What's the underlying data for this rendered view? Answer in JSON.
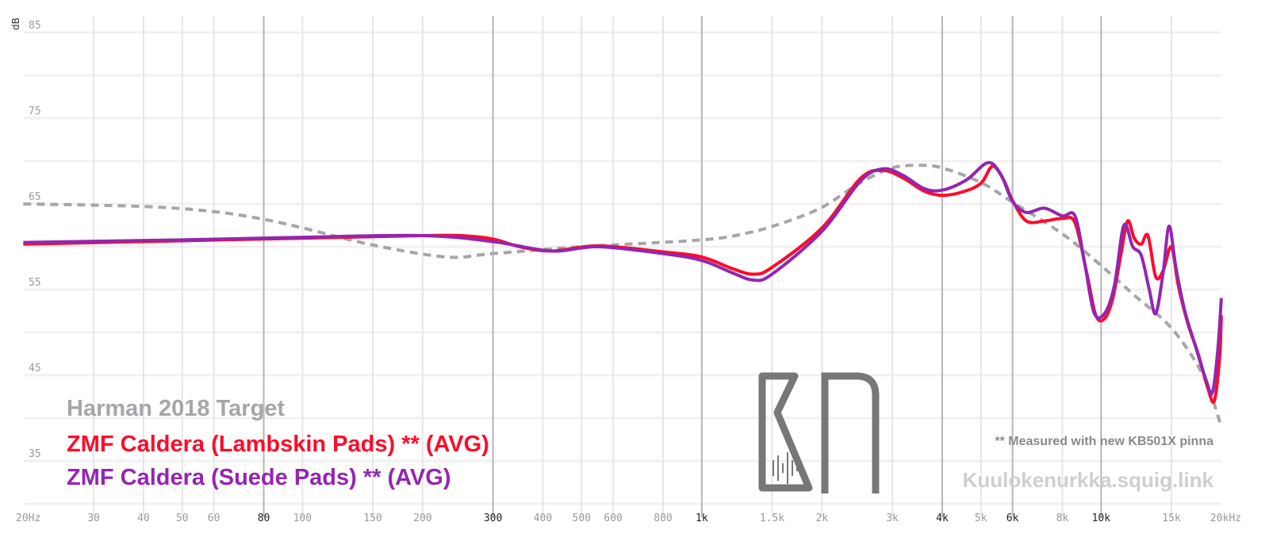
{
  "chart_data": {
    "type": "line",
    "xscale": "log",
    "xlim": [
      20,
      20000
    ],
    "ylim": [
      30,
      85
    ],
    "ylabel": "dB",
    "yticks": [
      85,
      75,
      65,
      55,
      45,
      35
    ],
    "xticks": [
      {
        "f": 20,
        "label": "20Hz",
        "dark": false
      },
      {
        "f": 30,
        "label": "30",
        "dark": false
      },
      {
        "f": 40,
        "label": "40",
        "dark": false
      },
      {
        "f": 50,
        "label": "50",
        "dark": false
      },
      {
        "f": 60,
        "label": "60",
        "dark": false
      },
      {
        "f": 80,
        "label": "80",
        "dark": true
      },
      {
        "f": 100,
        "label": "100",
        "dark": false
      },
      {
        "f": 150,
        "label": "150",
        "dark": false
      },
      {
        "f": 200,
        "label": "200",
        "dark": false
      },
      {
        "f": 300,
        "label": "300",
        "dark": true
      },
      {
        "f": 400,
        "label": "400",
        "dark": false
      },
      {
        "f": 500,
        "label": "500",
        "dark": false
      },
      {
        "f": 600,
        "label": "600",
        "dark": false
      },
      {
        "f": 800,
        "label": "800",
        "dark": false
      },
      {
        "f": 1000,
        "label": "1k",
        "dark": true
      },
      {
        "f": 1500,
        "label": "1.5k",
        "dark": false
      },
      {
        "f": 2000,
        "label": "2k",
        "dark": false
      },
      {
        "f": 3000,
        "label": "3k",
        "dark": false
      },
      {
        "f": 4000,
        "label": "4k",
        "dark": true
      },
      {
        "f": 5000,
        "label": "5k",
        "dark": false
      },
      {
        "f": 6000,
        "label": "6k",
        "dark": true
      },
      {
        "f": 8000,
        "label": "8k",
        "dark": false
      },
      {
        "f": 10000,
        "label": "10k",
        "dark": true
      },
      {
        "f": 15000,
        "label": "15k",
        "dark": false
      },
      {
        "f": 20000,
        "label": "20kHz",
        "dark": false
      }
    ],
    "series": [
      {
        "name": "Harman 2018 Target",
        "color": "#a8a5aa",
        "dashed": true,
        "points": [
          [
            20,
            65
          ],
          [
            40,
            64.7
          ],
          [
            60,
            64.1
          ],
          [
            80,
            63.2
          ],
          [
            100,
            62.2
          ],
          [
            150,
            60.2
          ],
          [
            230,
            58.8
          ],
          [
            300,
            59.2
          ],
          [
            500,
            60
          ],
          [
            1000,
            60.8
          ],
          [
            1300,
            61.6
          ],
          [
            1600,
            62.8
          ],
          [
            2000,
            64.6
          ],
          [
            2500,
            67.5
          ],
          [
            3000,
            69.2
          ],
          [
            3500,
            69.5
          ],
          [
            4000,
            69.2
          ],
          [
            5000,
            67.5
          ],
          [
            6000,
            65.2
          ],
          [
            8000,
            61.5
          ],
          [
            10000,
            57.8
          ],
          [
            12000,
            54.5
          ],
          [
            15000,
            50.5
          ],
          [
            18000,
            45
          ],
          [
            20000,
            39
          ]
        ]
      },
      {
        "name": "ZMF Caldera (Lambskin Pads) ** (AVG)",
        "color": "#ff0a2a",
        "dashed": false,
        "points": [
          [
            20,
            60.3
          ],
          [
            50,
            60.7
          ],
          [
            100,
            61
          ],
          [
            200,
            61.3
          ],
          [
            250,
            61.3
          ],
          [
            300,
            60.9
          ],
          [
            350,
            60
          ],
          [
            420,
            59.5
          ],
          [
            550,
            60.1
          ],
          [
            800,
            59.4
          ],
          [
            1000,
            58.8
          ],
          [
            1200,
            57.4
          ],
          [
            1350,
            56.8
          ],
          [
            1500,
            57.6
          ],
          [
            2000,
            62.2
          ],
          [
            2500,
            68
          ],
          [
            2850,
            68.9
          ],
          [
            3200,
            68
          ],
          [
            3600,
            66.5
          ],
          [
            4000,
            66
          ],
          [
            4500,
            66.4
          ],
          [
            5000,
            67.4
          ],
          [
            5350,
            69.4
          ],
          [
            5700,
            67.8
          ],
          [
            6000,
            65.4
          ],
          [
            6500,
            63
          ],
          [
            7200,
            63
          ],
          [
            8000,
            63.3
          ],
          [
            8600,
            62.8
          ],
          [
            9200,
            57
          ],
          [
            9700,
            52
          ],
          [
            10200,
            51.6
          ],
          [
            10700,
            54
          ],
          [
            11200,
            59
          ],
          [
            11650,
            63
          ],
          [
            12100,
            61
          ],
          [
            12600,
            60.3
          ],
          [
            13100,
            61.3
          ],
          [
            13700,
            56.5
          ],
          [
            14300,
            57.2
          ],
          [
            15000,
            60
          ],
          [
            15600,
            55.5
          ],
          [
            16500,
            51
          ],
          [
            17500,
            47.5
          ],
          [
            18500,
            43.5
          ],
          [
            19200,
            42
          ],
          [
            19800,
            47
          ],
          [
            20000,
            52
          ]
        ]
      },
      {
        "name": "ZMF Caldera (Suede Pads) ** (AVG)",
        "color": "#9326b0",
        "dashed": false,
        "points": [
          [
            20,
            60.5
          ],
          [
            50,
            60.8
          ],
          [
            100,
            61.1
          ],
          [
            200,
            61.3
          ],
          [
            300,
            60.6
          ],
          [
            420,
            59.5
          ],
          [
            550,
            60
          ],
          [
            800,
            59.2
          ],
          [
            1000,
            58.4
          ],
          [
            1200,
            56.9
          ],
          [
            1350,
            56.1
          ],
          [
            1500,
            56.8
          ],
          [
            2000,
            61.8
          ],
          [
            2500,
            67.7
          ],
          [
            2850,
            69.1
          ],
          [
            3200,
            68.3
          ],
          [
            3600,
            66.8
          ],
          [
            4000,
            66.6
          ],
          [
            4600,
            67.8
          ],
          [
            5200,
            69.8
          ],
          [
            5600,
            68.5
          ],
          [
            6000,
            65.3
          ],
          [
            6500,
            64
          ],
          [
            7200,
            64.5
          ],
          [
            8000,
            63.6
          ],
          [
            8600,
            63.6
          ],
          [
            9100,
            58
          ],
          [
            9600,
            52.3
          ],
          [
            10200,
            52.2
          ],
          [
            10800,
            55.5
          ],
          [
            11400,
            62.5
          ],
          [
            12000,
            60
          ],
          [
            12600,
            59
          ],
          [
            13200,
            55
          ],
          [
            13700,
            52.2
          ],
          [
            14300,
            57
          ],
          [
            14800,
            62.4
          ],
          [
            15400,
            57.5
          ],
          [
            16200,
            52.5
          ],
          [
            17200,
            48.5
          ],
          [
            18300,
            44.5
          ],
          [
            19000,
            43
          ],
          [
            19600,
            48
          ],
          [
            20000,
            54
          ]
        ]
      }
    ]
  },
  "legend": {
    "target": "Harman 2018 Target",
    "lambskin": "ZMF Caldera (Lambskin Pads) ** (AVG)",
    "suede": "ZMF Caldera (Suede Pads) ** (AVG)"
  },
  "note": "** Measured with new KB501X pinna",
  "site": "Kuulokenurkka.squig.link",
  "logo_text": "KN"
}
